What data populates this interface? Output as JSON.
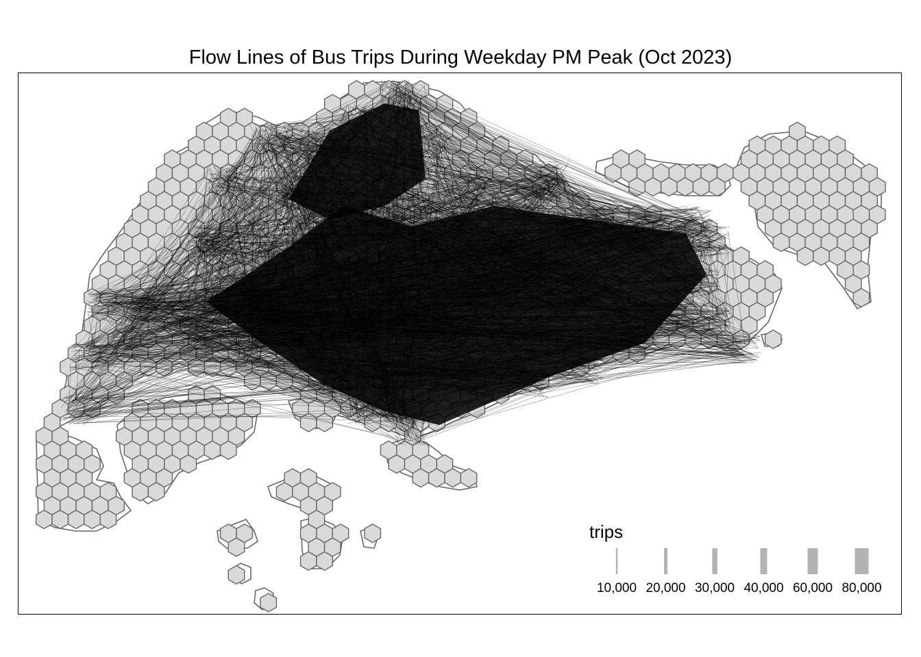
{
  "title": "Flow Lines of Bus Trips During Weekday PM Peak (Oct 2023)",
  "legend": {
    "title": "trips",
    "items": [
      {
        "label": "10,000",
        "value": 10000
      },
      {
        "label": "20,000",
        "value": 20000
      },
      {
        "label": "30,000",
        "value": 30000
      },
      {
        "label": "40,000",
        "value": 40000
      },
      {
        "label": "60,000",
        "value": 60000
      },
      {
        "label": "80,000",
        "value": 80000
      }
    ]
  },
  "colors": {
    "hex_fill": "#d9d9d9",
    "hex_border": "#666666",
    "flow_lines": "#000000",
    "legend_bar": "#b3b3b3",
    "frame": "#000000"
  }
}
